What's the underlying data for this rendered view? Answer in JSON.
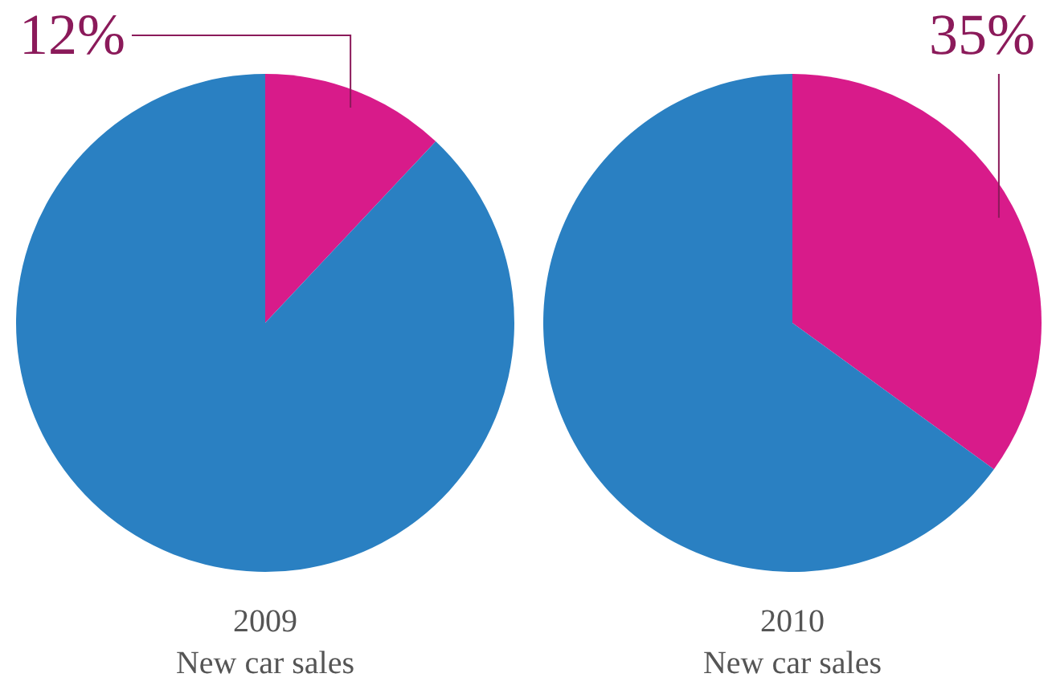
{
  "chart_data": [
    {
      "type": "pie",
      "title": "2009",
      "subtitle": "New car sales",
      "categories": [
        null,
        null
      ],
      "values": [
        12,
        88
      ],
      "colors": [
        "#d81b8a",
        "#2a80c2"
      ],
      "value_labels": [
        "12%",
        null
      ]
    },
    {
      "type": "pie",
      "title": "2010",
      "subtitle": "New car sales",
      "categories": [
        null,
        null
      ],
      "values": [
        35,
        65
      ],
      "colors": [
        "#d81b8a",
        "#2a80c2"
      ],
      "value_labels": [
        "35%",
        null
      ]
    }
  ]
}
